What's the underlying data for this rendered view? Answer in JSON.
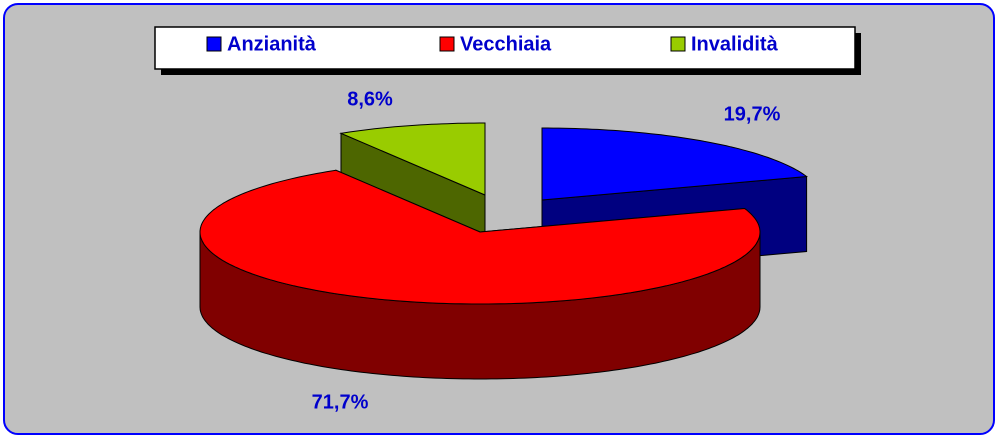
{
  "chart_data": {
    "type": "pie3d",
    "categories": [
      "Anzianità",
      "Vecchiaia",
      "Invalidità"
    ],
    "values": [
      19.7,
      71.7,
      8.6
    ],
    "value_labels": [
      "19,7%",
      "71,7%",
      "8,6%"
    ],
    "colors": [
      "#0000ff",
      "#ff0000",
      "#99cc00"
    ],
    "legend": "top"
  }
}
